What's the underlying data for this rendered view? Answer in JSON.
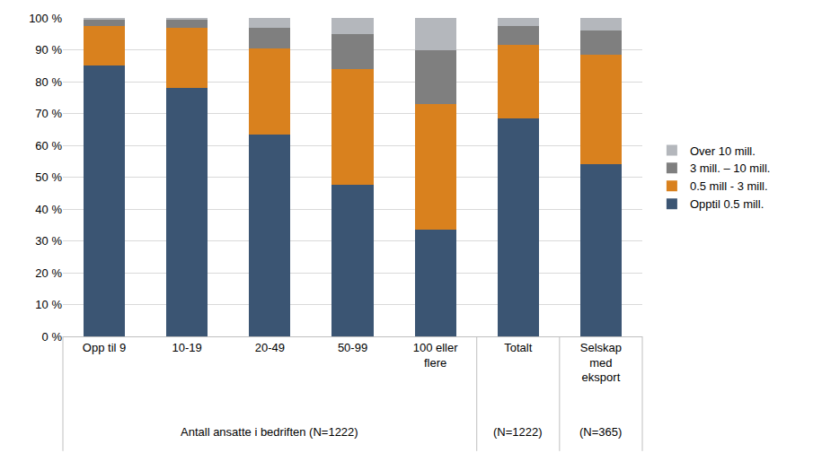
{
  "chart_data": {
    "type": "bar",
    "stacked": true,
    "grid": true,
    "legend": "right",
    "categories": [
      "Opp til 9",
      "10-19",
      "20-49",
      "50-99",
      "100 eller flere",
      "Totalt",
      "Selskap med eksport"
    ],
    "groups": [
      {
        "label": "Antall ansatte i bedriften (N=1222)",
        "members": [
          "Opp til 9",
          "10-19",
          "20-49",
          "50-99",
          "100 eller flere"
        ]
      },
      {
        "label": "(N=1222)",
        "members": [
          "Totalt"
        ]
      },
      {
        "label": "(N=365)",
        "members": [
          "Selskap med eksport"
        ]
      }
    ],
    "series": [
      {
        "name": "Opptil 0.5 mill.",
        "color": "#3b5573",
        "values": [
          85,
          78,
          63.5,
          47.5,
          33.5,
          68.5,
          54
        ]
      },
      {
        "name": "0.5 mill - 3 mill.",
        "color": "#d9811e",
        "values": [
          12.5,
          19,
          27,
          36.5,
          39.5,
          23,
          34.5
        ]
      },
      {
        "name": "3 mill. – 10 mill.",
        "color": "#7f7f7f",
        "values": [
          2,
          2.3,
          6.5,
          11,
          17,
          6,
          7.5
        ]
      },
      {
        "name": "Over 10 mill.",
        "color": "#b4b7bc",
        "values": [
          0.5,
          0.7,
          3,
          5,
          10,
          2.5,
          4
        ]
      }
    ],
    "ylim": [
      0,
      100
    ],
    "yticks": [
      {
        "value": 0,
        "label": "0 %"
      },
      {
        "value": 10,
        "label": "10 %"
      },
      {
        "value": 20,
        "label": "20 %"
      },
      {
        "value": 30,
        "label": "30 %"
      },
      {
        "value": 40,
        "label": "40 %"
      },
      {
        "value": 50,
        "label": "50 %"
      },
      {
        "value": 60,
        "label": "60 %"
      },
      {
        "value": 70,
        "label": "70 %"
      },
      {
        "value": 80,
        "label": "80 %"
      },
      {
        "value": 90,
        "label": "90 %"
      },
      {
        "value": 100,
        "label": "100 %"
      }
    ]
  }
}
